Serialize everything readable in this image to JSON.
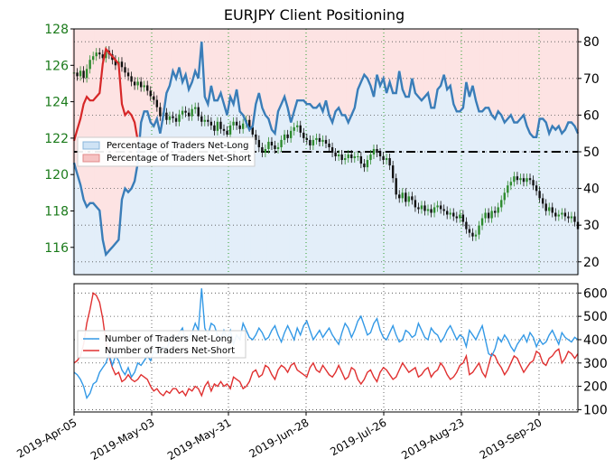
{
  "chart_data": [
    {
      "type": "line",
      "title": "EURJPY Client Positioning",
      "x_tick_labels": [
        "2019-Apr-05",
        "2019-May-03",
        "2019-May-31",
        "2019-Jun-28",
        "2019-Jul-26",
        "2019-Aug-23",
        "2019-Sep-20"
      ],
      "left_axis": {
        "ticks": [
          116,
          118,
          120,
          122,
          124,
          126,
          128
        ],
        "ylim": [
          114.5,
          128
        ],
        "color": "#1a7a1a"
      },
      "right_axis": {
        "ticks": [
          20,
          30,
          40,
          50,
          60,
          70,
          80
        ],
        "ylim": [
          16.5,
          83.5
        ]
      },
      "reference_line": 50,
      "legend": [
        "Percentage of Traders Net-Long",
        "Percentage of Traders Net-Short"
      ],
      "series": [
        {
          "name": "Percentage of Traders Net-Long",
          "axis": "right",
          "color": "#3a7db8",
          "values": [
            47,
            44,
            41,
            37,
            35,
            36,
            36,
            35,
            34,
            26,
            22,
            23,
            24,
            25,
            26,
            37,
            40,
            39,
            40,
            42,
            47,
            58,
            61,
            61,
            58,
            57,
            59,
            55,
            60,
            66,
            68,
            72,
            70,
            73,
            69,
            71,
            67,
            69,
            72,
            70,
            80,
            65,
            63,
            68,
            64,
            64,
            66,
            63,
            60,
            65,
            63,
            67,
            61,
            60,
            58,
            56,
            57,
            63,
            66,
            62,
            60,
            59,
            56,
            55,
            61,
            63,
            65,
            62,
            58,
            61,
            64,
            64,
            64,
            63,
            63,
            62,
            62,
            63,
            61,
            64,
            60,
            58,
            61,
            62,
            60,
            60,
            58,
            60,
            62,
            67,
            69,
            71,
            70,
            68,
            65,
            71,
            68,
            70,
            66,
            69,
            66,
            66,
            72,
            67,
            65,
            65,
            70,
            66,
            65,
            64,
            65,
            66,
            62,
            62,
            67,
            68,
            71,
            67,
            68,
            63,
            61,
            61,
            62,
            69,
            65,
            68,
            64,
            61,
            61,
            62,
            62,
            60,
            59,
            61,
            60,
            58,
            59,
            60,
            58,
            58,
            59,
            60,
            57,
            55,
            54,
            54,
            59,
            59,
            58,
            55,
            57,
            56,
            57,
            55,
            56,
            58,
            58,
            57,
            55
          ],
          "net_short_values": [
            53,
            56,
            59,
            63,
            65,
            64,
            64,
            65,
            66,
            74,
            78,
            77,
            76,
            75,
            74,
            63,
            60,
            61,
            60,
            58,
            53,
            42,
            39,
            39,
            42,
            43,
            41,
            45,
            40,
            34,
            32,
            28,
            30,
            27,
            31,
            29,
            33,
            31,
            28,
            30,
            20,
            35,
            37,
            32,
            36,
            36,
            34,
            37,
            40,
            35,
            37,
            33,
            39,
            40,
            42,
            44,
            43,
            37,
            34,
            38,
            40,
            41,
            44,
            45,
            39,
            37,
            35,
            38,
            42,
            39,
            36,
            36,
            36,
            37,
            37,
            38,
            38,
            37,
            39,
            36,
            40,
            42,
            39,
            38,
            40,
            40,
            42,
            40,
            38,
            33,
            31,
            29,
            30,
            32,
            35,
            29,
            32,
            30,
            34,
            31,
            34,
            34,
            28,
            33,
            35,
            35,
            30,
            34,
            35,
            36,
            35,
            34,
            38,
            38,
            33,
            32,
            29,
            33,
            32,
            37,
            39,
            39,
            38,
            31,
            35,
            32,
            36,
            39,
            39,
            38,
            38,
            40,
            41,
            39,
            40,
            42,
            41,
            40,
            42,
            42,
            41,
            40,
            43,
            45,
            46,
            46,
            41,
            41,
            42,
            45,
            43,
            44,
            43,
            45,
            44,
            42,
            42,
            43,
            45
          ]
        },
        {
          "name": "EURJPY price",
          "axis": "left",
          "color": "#111111",
          "values": [
            125.6,
            125.4,
            125.7,
            125.3,
            125.8,
            126.3,
            126.5,
            126.7,
            126.6,
            126.4,
            126.8,
            126.6,
            126.3,
            126.0,
            126.2,
            125.9,
            125.6,
            125.4,
            125.1,
            124.9,
            125.1,
            124.8,
            124.9,
            124.6,
            124.3,
            124.1,
            123.7,
            123.2,
            123.4,
            123.0,
            123.2,
            123.1,
            122.9,
            123.3,
            123.5,
            123.4,
            123.2,
            123.6,
            123.7,
            123.2,
            122.9,
            123.0,
            122.9,
            122.7,
            122.4,
            122.9,
            122.5,
            122.4,
            122.2,
            122.7,
            122.9,
            122.7,
            122.5,
            122.8,
            123.0,
            122.6,
            122.2,
            121.9,
            121.5,
            121.2,
            121.4,
            121.8,
            121.6,
            121.4,
            121.5,
            121.9,
            122.2,
            122.0,
            122.4,
            122.6,
            122.7,
            122.3,
            122.0,
            121.9,
            121.6,
            121.9,
            122.0,
            121.8,
            121.9,
            121.7,
            121.5,
            121.2,
            121.0,
            121.1,
            120.8,
            120.9,
            121.1,
            120.9,
            121.0,
            121.0,
            120.6,
            120.4,
            120.8,
            121.1,
            121.4,
            121.2,
            121.0,
            120.8,
            120.9,
            120.5,
            119.8,
            118.9,
            118.7,
            119.0,
            118.5,
            118.8,
            118.6,
            118.2,
            118.1,
            118.3,
            118.0,
            118.1,
            117.9,
            118.2,
            118.3,
            118.1,
            118.0,
            117.8,
            117.9,
            117.7,
            117.6,
            117.8,
            117.4,
            117.0,
            116.8,
            116.6,
            116.7,
            117.2,
            117.6,
            117.9,
            117.6,
            118.0,
            117.9,
            118.2,
            118.6,
            119.0,
            119.4,
            119.6,
            119.9,
            119.7,
            119.8,
            119.6,
            119.8,
            119.7,
            119.4,
            119.1,
            118.7,
            118.4,
            118.0,
            118.2,
            117.9,
            117.7,
            117.8,
            117.9,
            117.7,
            117.6,
            117.7,
            117.4,
            117.0
          ]
        }
      ]
    },
    {
      "type": "line",
      "y_axis": {
        "ticks": [
          100,
          200,
          300,
          400,
          500,
          600
        ],
        "ylim": [
          90,
          640
        ]
      },
      "legend": [
        "Number of Traders Net-Long",
        "Number of Traders Net-Short"
      ],
      "series": [
        {
          "name": "Number of Traders Net-Long",
          "color": "#3399e6",
          "values": [
            260,
            250,
            230,
            200,
            150,
            170,
            210,
            220,
            260,
            280,
            300,
            340,
            290,
            330,
            310,
            270,
            250,
            280,
            240,
            260,
            300,
            290,
            310,
            330,
            310,
            350,
            340,
            360,
            370,
            350,
            400,
            420,
            400,
            430,
            450,
            390,
            410,
            430,
            470,
            440,
            620,
            450,
            420,
            470,
            460,
            420,
            400,
            440,
            410,
            440,
            380,
            420,
            400,
            470,
            440,
            410,
            400,
            420,
            450,
            430,
            400,
            410,
            440,
            460,
            420,
            390,
            430,
            460,
            430,
            400,
            450,
            420,
            460,
            480,
            440,
            400,
            420,
            440,
            410,
            430,
            450,
            420,
            400,
            380,
            430,
            470,
            450,
            410,
            440,
            480,
            500,
            460,
            420,
            430,
            470,
            490,
            440,
            410,
            400,
            430,
            460,
            420,
            390,
            400,
            440,
            430,
            410,
            420,
            470,
            440,
            410,
            400,
            450,
            430,
            420,
            390,
            410,
            440,
            460,
            430,
            400,
            420,
            410,
            370,
            440,
            420,
            400,
            430,
            460,
            400,
            340,
            330,
            360,
            410,
            390,
            420,
            400,
            370,
            350,
            380,
            400,
            420,
            390,
            430,
            410,
            370,
            400,
            380,
            390,
            420,
            440,
            410,
            380,
            430,
            410,
            400,
            390,
            410,
            400
          ]
        },
        {
          "name": "Number of Traders Net-Short",
          "color": "#e03030",
          "values": [
            300,
            310,
            330,
            380,
            470,
            530,
            600,
            590,
            560,
            490,
            390,
            330,
            280,
            250,
            260,
            220,
            230,
            250,
            230,
            220,
            230,
            250,
            240,
            230,
            200,
            180,
            190,
            170,
            160,
            180,
            170,
            190,
            190,
            170,
            180,
            160,
            190,
            180,
            200,
            190,
            160,
            200,
            220,
            180,
            210,
            200,
            220,
            200,
            210,
            190,
            240,
            230,
            220,
            190,
            200,
            220,
            260,
            270,
            240,
            250,
            290,
            280,
            250,
            230,
            270,
            290,
            280,
            260,
            290,
            300,
            270,
            260,
            250,
            240,
            280,
            300,
            270,
            260,
            290,
            270,
            250,
            240,
            260,
            290,
            260,
            230,
            240,
            280,
            270,
            230,
            210,
            230,
            260,
            270,
            240,
            220,
            260,
            280,
            270,
            250,
            230,
            240,
            270,
            300,
            280,
            260,
            270,
            280,
            240,
            250,
            270,
            280,
            240,
            260,
            270,
            300,
            280,
            250,
            230,
            240,
            260,
            290,
            300,
            330,
            250,
            260,
            280,
            300,
            260,
            240,
            290,
            340,
            330,
            300,
            280,
            250,
            270,
            300,
            330,
            320,
            290,
            260,
            280,
            300,
            310,
            350,
            340,
            300,
            290,
            320,
            330,
            350,
            360,
            300,
            320,
            350,
            340,
            320,
            340
          ]
        }
      ]
    }
  ]
}
